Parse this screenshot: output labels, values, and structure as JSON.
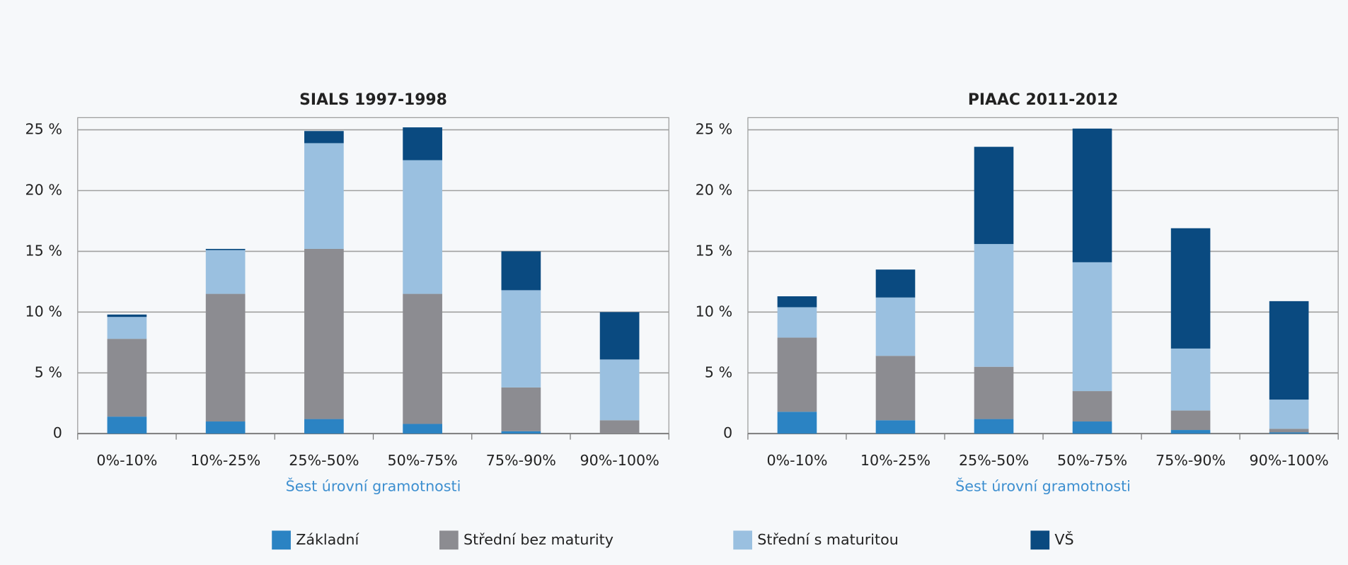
{
  "chart_data": [
    {
      "type": "bar",
      "stacked": true,
      "title": "SIALS 1997-1998",
      "x_label": "Šest úrovní gramotnosti",
      "categories": [
        "0%-10%",
        "10%-25%",
        "25%-50%",
        "50%-75%",
        "75%-90%",
        "90%-100%"
      ],
      "series": [
        {
          "name": "Základní",
          "color": "#2b83c3",
          "values": [
            1.4,
            1.0,
            1.2,
            0.8,
            0.2,
            0
          ]
        },
        {
          "name": "Střední bez maturity",
          "color": "#8c8c91",
          "values": [
            6.4,
            10.5,
            14.0,
            10.7,
            3.6,
            1.1
          ]
        },
        {
          "name": "Střední s maturitou",
          "color": "#9ac0e0",
          "values": [
            1.8,
            3.6,
            8.7,
            11.0,
            8.0,
            5.0
          ]
        },
        {
          "name": "VŠ",
          "color": "#0a4a80",
          "values": [
            0.2,
            0.1,
            1.0,
            2.7,
            3.2,
            3.9
          ]
        }
      ],
      "ylim": [
        0,
        26
      ],
      "yticks": [
        0,
        {
          "value": 5,
          "label": "5 %"
        },
        {
          "value": 10,
          "label": "10 %"
        },
        {
          "value": 15,
          "label": "15 %"
        },
        {
          "value": 20,
          "label": "20 %"
        },
        {
          "value": 25,
          "label": "25 %"
        }
      ],
      "grid": true
    },
    {
      "type": "bar",
      "stacked": true,
      "title": "PIAAC 2011-2012",
      "x_label": "Šest úrovní gramotnosti",
      "categories": [
        "0%-10%",
        "10%-25%",
        "25%-50%",
        "50%-75%",
        "75%-90%",
        "90%-100%"
      ],
      "series": [
        {
          "name": "Základní",
          "color": "#2b83c3",
          "values": [
            1.8,
            1.1,
            1.2,
            1.0,
            0.3,
            0.1
          ]
        },
        {
          "name": "Střední bez maturity",
          "color": "#8c8c91",
          "values": [
            6.1,
            5.3,
            4.3,
            2.5,
            1.6,
            0.3
          ]
        },
        {
          "name": "Střední s maturitou",
          "color": "#9ac0e0",
          "values": [
            2.5,
            4.8,
            10.1,
            10.6,
            5.1,
            2.4
          ]
        },
        {
          "name": "VŠ",
          "color": "#0a4a80",
          "values": [
            0.9,
            2.3,
            8.0,
            11.0,
            9.9,
            8.1
          ]
        }
      ],
      "ylim": [
        0,
        26
      ],
      "yticks": [
        0,
        {
          "value": 5,
          "label": "5 %"
        },
        {
          "value": 10,
          "label": "10 %"
        },
        {
          "value": 15,
          "label": "15 %"
        },
        {
          "value": 20,
          "label": "20 %"
        },
        {
          "value": 25,
          "label": "25 %"
        }
      ],
      "grid": true
    }
  ]
}
